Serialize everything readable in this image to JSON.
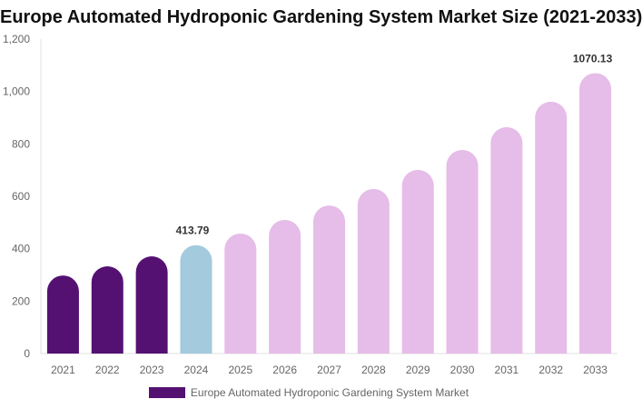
{
  "chart_data": {
    "type": "bar",
    "title": "Europe Automated Hydroponic Gardening System Market Size (2021-2033)",
    "categories": [
      "2021",
      "2022",
      "2023",
      "2024",
      "2025",
      "2026",
      "2027",
      "2028",
      "2029",
      "2030",
      "2031",
      "2032",
      "2033"
    ],
    "series": [
      {
        "name": "Europe Automated Hydroponic Gardening System Market",
        "values": [
          298,
          333,
          371,
          413.79,
          458,
          510,
          565,
          628,
          701,
          777,
          864,
          961,
          1070.13
        ]
      }
    ],
    "data_labels": {
      "2024": "413.79",
      "2033": "1070.13"
    },
    "ylim": [
      0,
      1200
    ],
    "yticks": [
      0,
      200,
      400,
      600,
      800,
      1000,
      1200
    ],
    "ytick_labels": [
      "0",
      "200",
      "400",
      "600",
      "800",
      "1,000",
      "1,200"
    ],
    "grid": false,
    "legend_position": "bottom",
    "colors": {
      "historical": "#541172",
      "current": "#a3cadd",
      "forecast": "#e6bce8"
    },
    "color_by_category": [
      "historical",
      "historical",
      "historical",
      "current",
      "forecast",
      "forecast",
      "forecast",
      "forecast",
      "forecast",
      "forecast",
      "forecast",
      "forecast",
      "forecast"
    ]
  }
}
